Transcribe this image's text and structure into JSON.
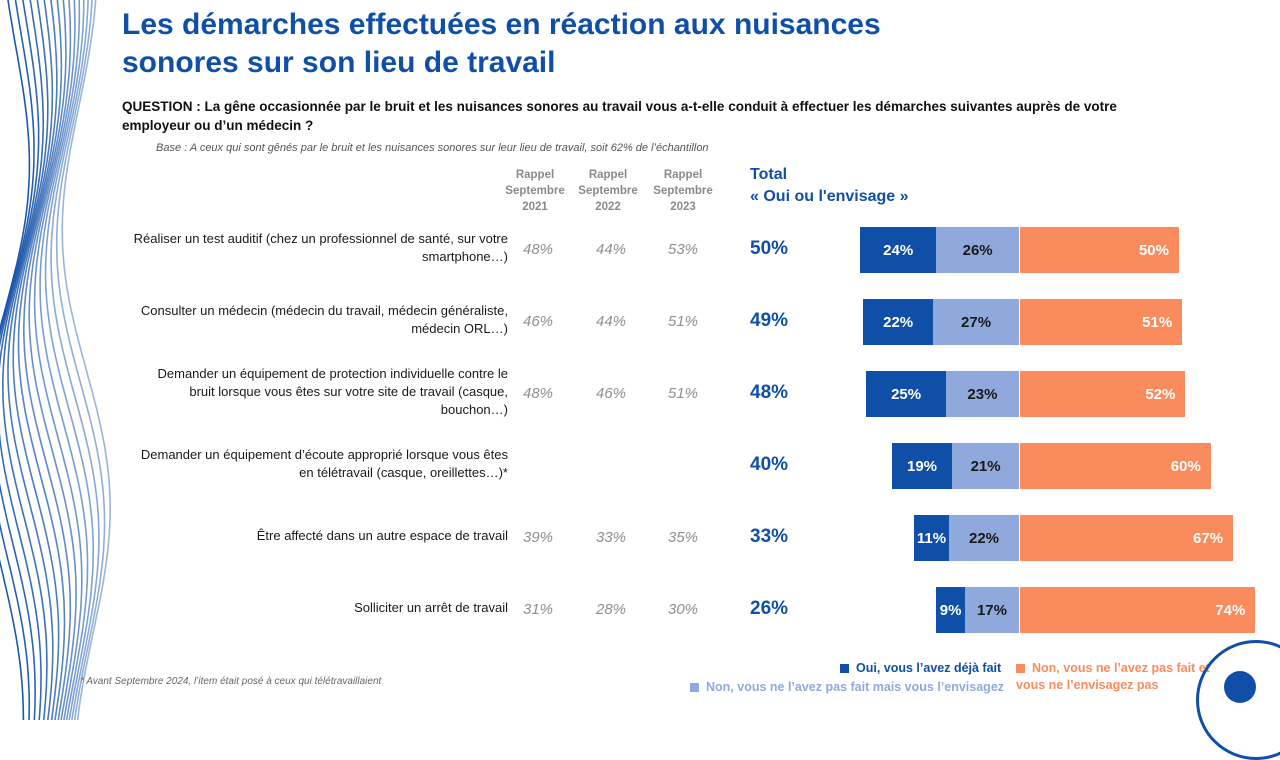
{
  "title_line1": "Les démarches effectuées en réaction aux nuisances",
  "title_line2": "sonores sur son lieu de travail",
  "question_line1": "QUESTION : La gêne occasionnée par le bruit et les nuisances sonores au travail vous a-t-elle conduit à effectuer les démarches suivantes auprès de votre",
  "question_line2": "employeur ou d’un médecin ?",
  "base": "Base : A ceux qui sont gênés par le bruit et les nuisances sonores sur leur lieu de travail, soit 62% de l’échantillon",
  "columns": [
    {
      "l1": "Rappel",
      "l2": "Septembre",
      "l3": "2021"
    },
    {
      "l1": "Rappel",
      "l2": "Septembre",
      "l3": "2022"
    },
    {
      "l1": "Rappel",
      "l2": "Septembre",
      "l3": "2023"
    }
  ],
  "total_header_line1": "Total",
  "total_header_line2": "« Oui ou l'envisage  »",
  "footnote": "* Avant Septembre 2024, l’item était posé à ceux qui télétravaillaient",
  "colors": {
    "dark": "#0f4fa8",
    "light": "#8fa9dc",
    "orange": "#f98b5c"
  },
  "legend": {
    "dark": "Oui, vous l’avez déjà fait",
    "light": "Non, vous ne l’avez pas fait mais vous l’envisagez",
    "orange_line1": "Non, vous ne l’avez pas fait et",
    "orange_line2": "vous ne l’envisagez pas"
  },
  "chart_data": {
    "type": "bar",
    "orientation": "horizontal-stacked",
    "series": [
      {
        "name": "Oui, vous l’avez déjà fait",
        "values": [
          24,
          22,
          25,
          19,
          11,
          9
        ]
      },
      {
        "name": "Non, vous ne l’avez pas fait mais vous l’envisagez",
        "values": [
          26,
          27,
          23,
          21,
          22,
          17
        ]
      },
      {
        "name": "Non, vous ne l’avez pas fait et vous ne l’envisagez pas",
        "values": [
          50,
          51,
          52,
          60,
          67,
          74
        ]
      }
    ],
    "rows": [
      {
        "label1": "Réaliser un test auditif (chez un professionnel de santé, sur votre",
        "label2": "smartphone…)",
        "label3": "",
        "h2021": "48%",
        "h2022": "44%",
        "h2023": "53%",
        "total": "50%",
        "oui": 24,
        "envisage": 26,
        "non": 50
      },
      {
        "label1": "Consulter un médecin (médecin du travail, médecin généraliste,",
        "label2": "médecin ORL…)",
        "label3": "",
        "h2021": "46%",
        "h2022": "44%",
        "h2023": "51%",
        "total": "49%",
        "oui": 22,
        "envisage": 27,
        "non": 51
      },
      {
        "label1": "Demander un équipement de protection individuelle contre le",
        "label2": "bruit lorsque vous êtes sur votre site de travail (casque,",
        "label3": "bouchon…)",
        "h2021": "48%",
        "h2022": "46%",
        "h2023": "51%",
        "total": "48%",
        "oui": 25,
        "envisage": 23,
        "non": 52
      },
      {
        "label1": "Demander un équipement d’écoute approprié lorsque vous êtes",
        "label2": "en télétravail (casque, oreillettes…)*",
        "label3": "",
        "h2021": "",
        "h2022": "",
        "h2023": "",
        "total": "40%",
        "oui": 19,
        "envisage": 21,
        "non": 60
      },
      {
        "label1": "Être affecté dans un autre espace de travail",
        "label2": "",
        "label3": "",
        "h2021": "39%",
        "h2022": "33%",
        "h2023": "35%",
        "total": "33%",
        "oui": 11,
        "envisage": 22,
        "non": 67
      },
      {
        "label1": "Solliciter un arrêt de travail",
        "label2": "",
        "label3": "",
        "h2021": "31%",
        "h2022": "28%",
        "h2023": "30%",
        "total": "26%",
        "oui": 9,
        "envisage": 17,
        "non": 74
      }
    ]
  }
}
